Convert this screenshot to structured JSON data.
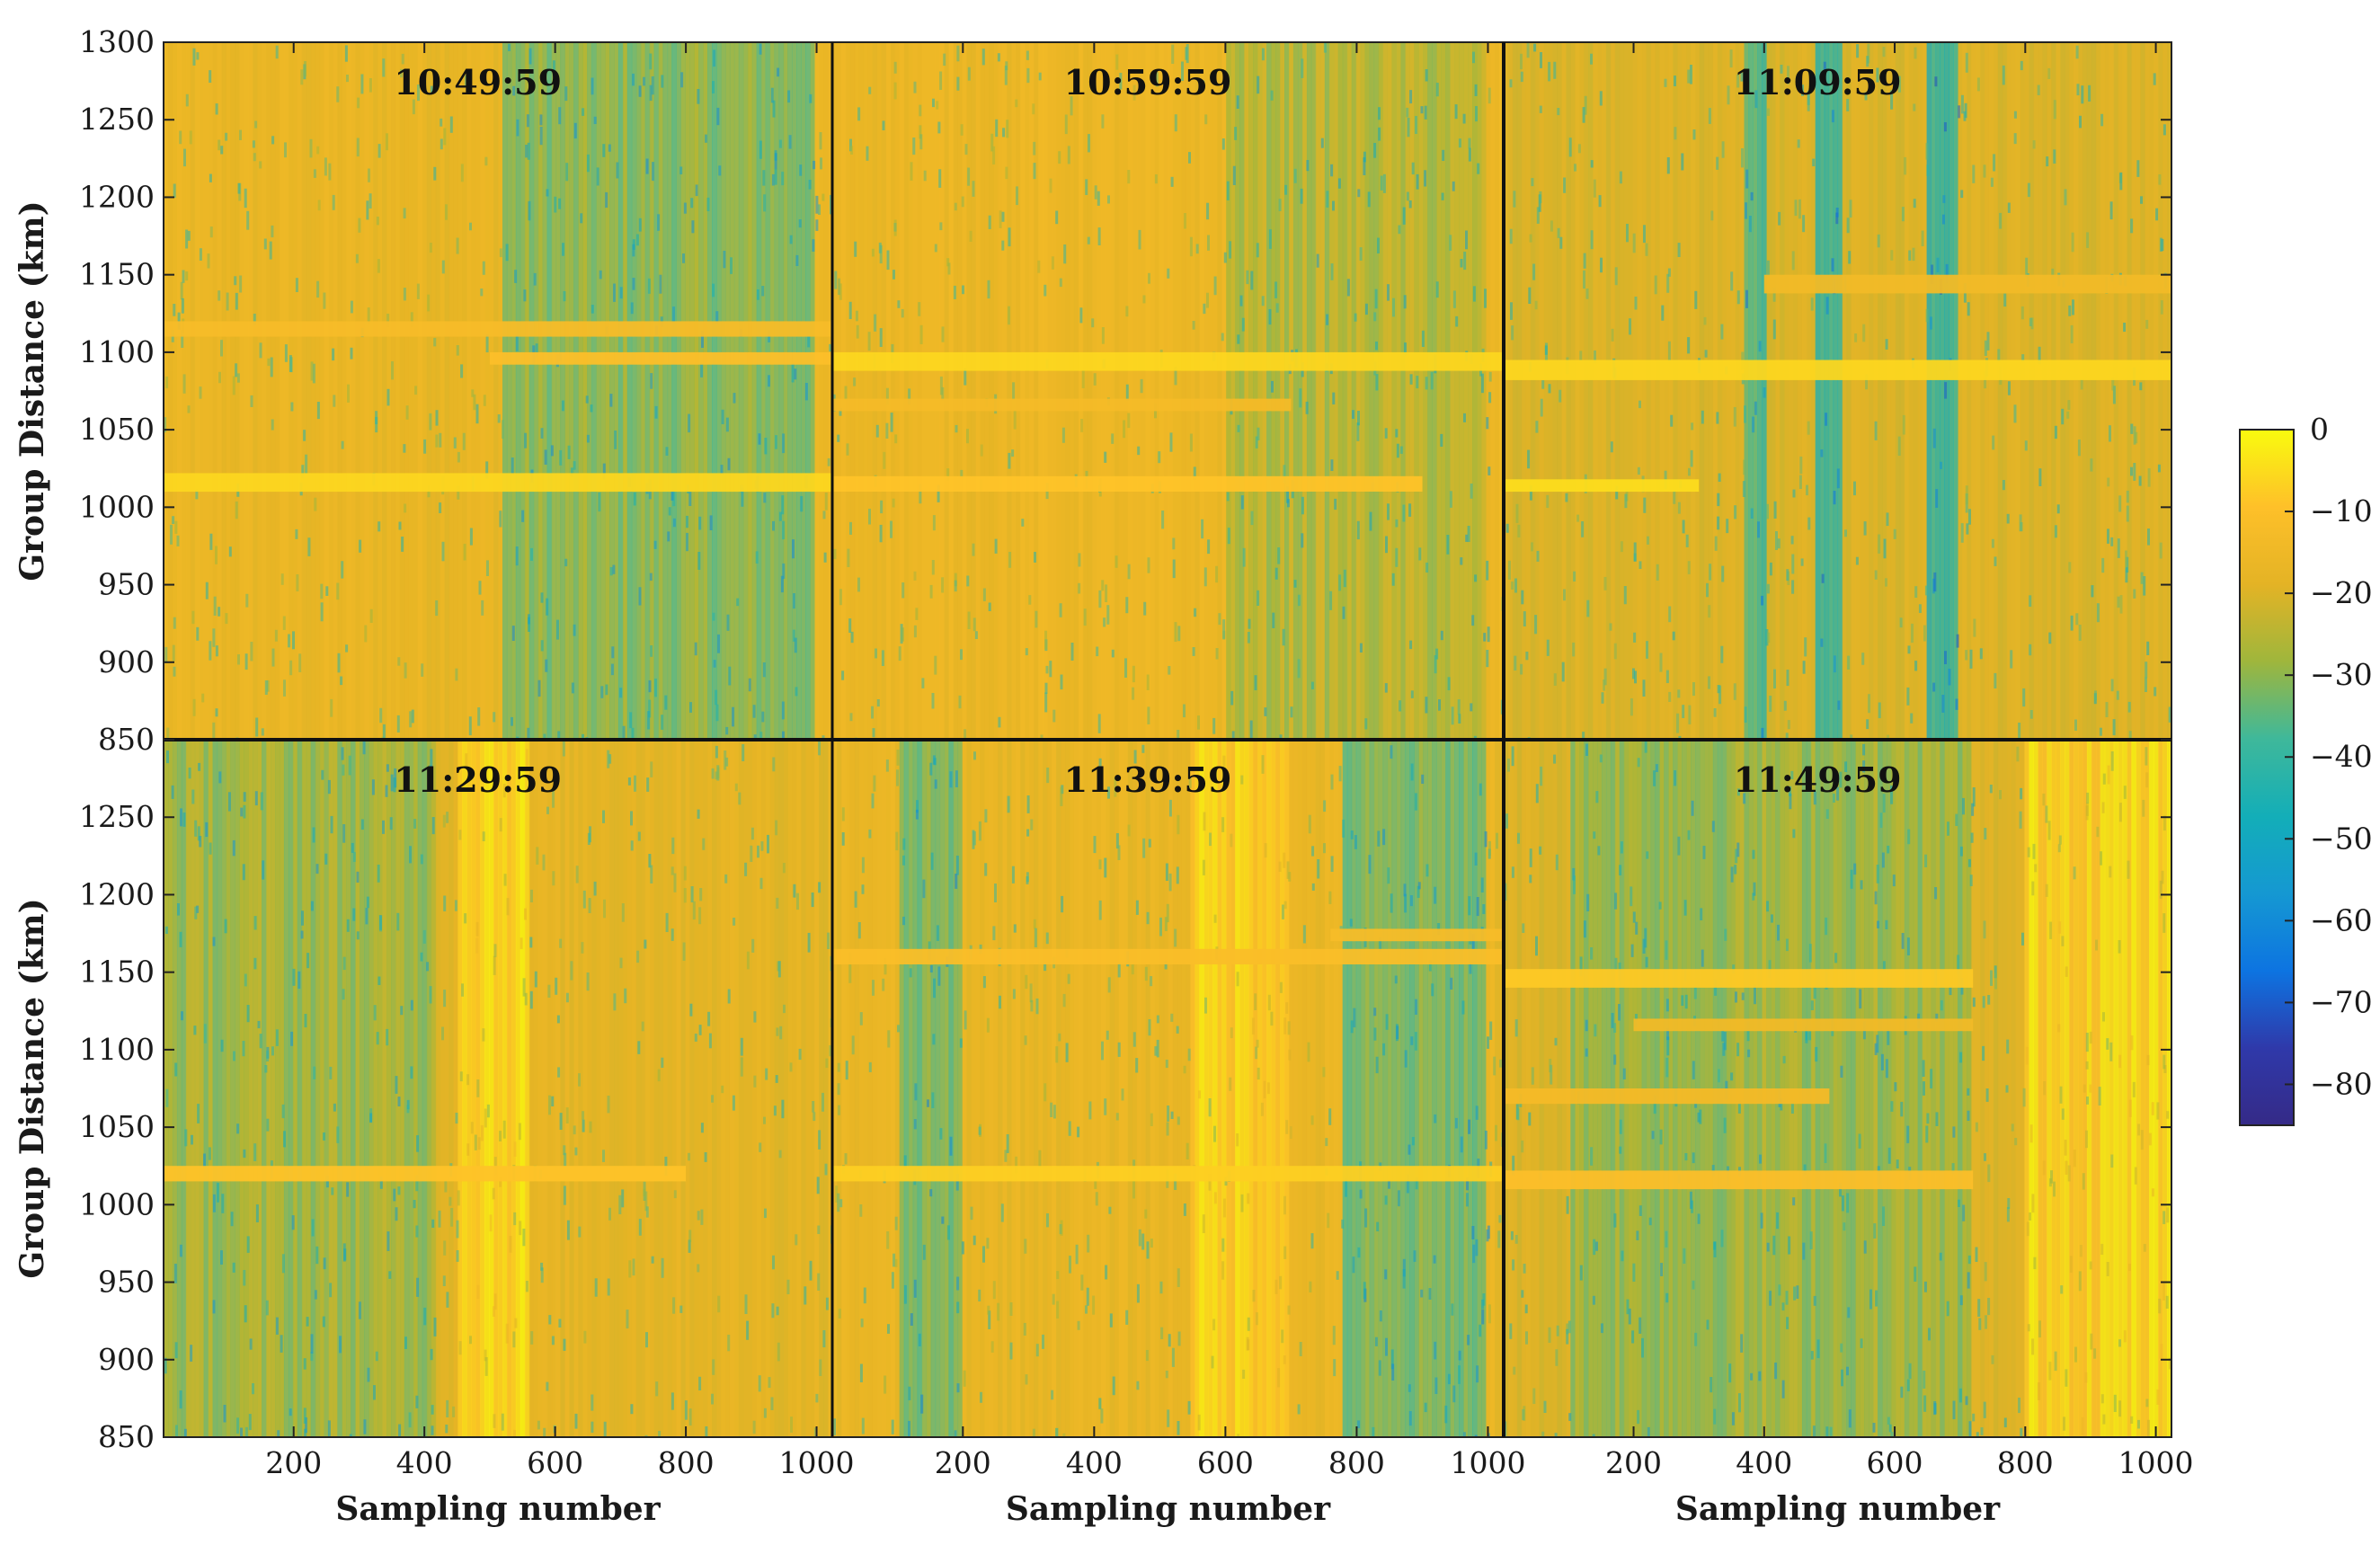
{
  "chart_data": {
    "type": "heatmap",
    "layout": "2x3 grid of panels",
    "xlabel": "Sampling number",
    "ylabel": "Group Distance (km)",
    "xlim": [
      1,
      1024
    ],
    "ylim": [
      850,
      1300
    ],
    "x_ticks": [
      "200",
      "400",
      "600",
      "800",
      "1000"
    ],
    "y_ticks_top_row": [
      "1300",
      "1250",
      "1200",
      "1150",
      "1100",
      "1050",
      "1000",
      "950",
      "900",
      "850"
    ],
    "y_ticks_bottom_row": [
      "1250",
      "1200",
      "1150",
      "1100",
      "1050",
      "1000",
      "950",
      "900",
      "850"
    ],
    "colorbar": {
      "range": [
        -85,
        0
      ],
      "ticks": [
        "0",
        "−10",
        "−20",
        "−30",
        "−40",
        "−50",
        "−60",
        "−70",
        "−80"
      ],
      "colormap": "parula",
      "colors": [
        "#f9fb0e",
        "#fec029",
        "#e4b325",
        "#9fb63c",
        "#3fb89a",
        "#13aeb8",
        "#1598d2",
        "#0d74e1",
        "#2f39aa",
        "#352a87"
      ]
    },
    "panels": [
      {
        "title": "10:49:59",
        "background_level": -17,
        "bright_bands": [
          {
            "distance_range": [
              1010,
              1022
            ],
            "sample_range": [
              1,
              1024
            ],
            "level": -6
          },
          {
            "distance_range": [
              1110,
              1120
            ],
            "sample_range": [
              1,
              1024
            ],
            "level": -12
          },
          {
            "distance_range": [
              1092,
              1100
            ],
            "sample_range": [
              500,
              1024
            ],
            "level": -10
          }
        ],
        "weak_columns": [
          {
            "sample_range": [
              520,
              1000
            ],
            "level": -33
          }
        ]
      },
      {
        "title": "10:59:59",
        "background_level": -16,
        "bright_bands": [
          {
            "distance_range": [
              1088,
              1100
            ],
            "sample_range": [
              1,
              1024
            ],
            "level": -6
          },
          {
            "distance_range": [
              1010,
              1020
            ],
            "sample_range": [
              1,
              900
            ],
            "level": -9
          },
          {
            "distance_range": [
              1062,
              1070
            ],
            "sample_range": [
              1,
              700
            ],
            "level": -13
          }
        ],
        "weak_columns": [
          {
            "sample_range": [
              600,
              1000
            ],
            "level": -27
          }
        ]
      },
      {
        "title": "11:09:59",
        "background_level": -20,
        "bright_bands": [
          {
            "distance_range": [
              1082,
              1095
            ],
            "sample_range": [
              1,
              1024
            ],
            "level": -6
          },
          {
            "distance_range": [
              1010,
              1018
            ],
            "sample_range": [
              1,
              300
            ],
            "level": -5
          },
          {
            "distance_range": [
              1138,
              1150
            ],
            "sample_range": [
              400,
              1024
            ],
            "level": -14
          }
        ],
        "weak_columns": [
          {
            "sample_range": [
              370,
              400
            ],
            "level": -40
          },
          {
            "sample_range": [
              480,
              520
            ],
            "level": -45
          },
          {
            "sample_range": [
              650,
              700
            ],
            "level": -45
          }
        ]
      },
      {
        "title": "11:29:59",
        "background_level": -18,
        "bright_bands": [
          {
            "distance_range": [
              1015,
              1025
            ],
            "sample_range": [
              1,
              800
            ],
            "level": -9
          }
        ],
        "weak_columns": [
          {
            "sample_range": [
              1,
              420
            ],
            "level": -30
          },
          {
            "sample_range": [
              450,
              560
            ],
            "level": -4
          }
        ]
      },
      {
        "title": "11:39:59",
        "background_level": -17,
        "bright_bands": [
          {
            "distance_range": [
              1015,
              1025
            ],
            "sample_range": [
              1,
              1024
            ],
            "level": -7
          },
          {
            "distance_range": [
              1155,
              1165
            ],
            "sample_range": [
              1,
              1024
            ],
            "level": -11
          },
          {
            "distance_range": [
              1170,
              1178
            ],
            "sample_range": [
              760,
              1024
            ],
            "level": -12
          }
        ],
        "weak_columns": [
          {
            "sample_range": [
              100,
              200
            ],
            "level": -35
          },
          {
            "sample_range": [
              550,
              700
            ],
            "level": -6
          },
          {
            "sample_range": [
              780,
              1000
            ],
            "level": -35
          }
        ]
      },
      {
        "title": "11:49:59",
        "background_level": -20,
        "bright_bands": [
          {
            "distance_range": [
              1140,
              1152
            ],
            "sample_range": [
              1,
              720
            ],
            "level": -8
          },
          {
            "distance_range": [
              1010,
              1022
            ],
            "sample_range": [
              1,
              720
            ],
            "level": -10
          },
          {
            "distance_range": [
              1065,
              1075
            ],
            "sample_range": [
              1,
              500
            ],
            "level": -13
          },
          {
            "distance_range": [
              1112,
              1120
            ],
            "sample_range": [
              200,
              720
            ],
            "level": -14
          }
        ],
        "weak_columns": [
          {
            "sample_range": [
              100,
              720
            ],
            "level": -30
          },
          {
            "sample_range": [
              800,
              1024
            ],
            "level": -5
          }
        ]
      }
    ]
  }
}
